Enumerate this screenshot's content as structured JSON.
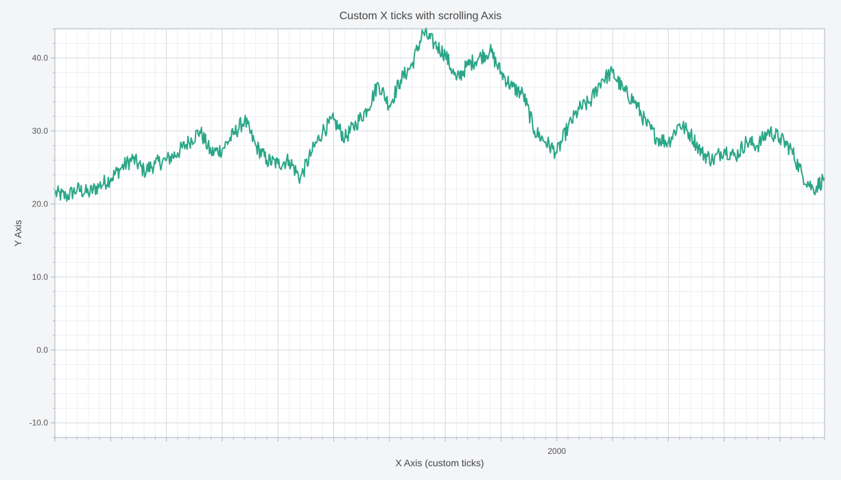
{
  "chart_data": {
    "type": "line",
    "title": "Custom X ticks with scrolling Axis",
    "xlabel": "X Axis (custom ticks)",
    "ylabel": "Y Axis",
    "xlim": [
      1550,
      2240
    ],
    "ylim": [
      -12,
      44
    ],
    "x_tick_labels": [
      {
        "x": 2000,
        "label": "2000"
      }
    ],
    "y_tick_labels": [
      {
        "y": 40,
        "label": "40.0"
      },
      {
        "y": 30,
        "label": "30.0"
      },
      {
        "y": 20,
        "label": "20.0"
      },
      {
        "y": 10,
        "label": "10.0"
      },
      {
        "y": 0,
        "label": "0.0"
      },
      {
        "y": -10,
        "label": "-10.0"
      }
    ],
    "grid": true,
    "series": [
      {
        "color": "#2aa687",
        "x": [
          1550,
          1560,
          1570,
          1580,
          1590,
          1600,
          1610,
          1620,
          1630,
          1640,
          1650,
          1660,
          1670,
          1680,
          1690,
          1700,
          1710,
          1720,
          1730,
          1740,
          1750,
          1760,
          1770,
          1780,
          1790,
          1800,
          1810,
          1820,
          1830,
          1840,
          1850,
          1860,
          1870,
          1880,
          1890,
          1900,
          1910,
          1920,
          1930,
          1940,
          1950,
          1960,
          1970,
          1980,
          1990,
          2000,
          2010,
          2020,
          2030,
          2040,
          2050,
          2060,
          2070,
          2080,
          2090,
          2100,
          2110,
          2120,
          2130,
          2140,
          2150,
          2160,
          2170,
          2180,
          2190,
          2200,
          2210,
          2220,
          2230,
          2240
        ],
        "y": [
          21.5,
          21.0,
          22.0,
          21.5,
          22.5,
          23.5,
          25.0,
          26.2,
          24.5,
          25.5,
          26.0,
          27.0,
          28.5,
          30.0,
          27.0,
          27.5,
          29.5,
          31.5,
          28.0,
          26.0,
          25.5,
          26.0,
          23.5,
          27.0,
          30.0,
          31.5,
          29.0,
          31.0,
          33.0,
          36.5,
          33.5,
          37.0,
          39.0,
          43.5,
          42.0,
          40.5,
          37.0,
          39.0,
          40.0,
          41.0,
          38.0,
          36.0,
          35.0,
          30.0,
          28.5,
          27.0,
          30.5,
          33.0,
          34.0,
          37.0,
          38.0,
          35.5,
          34.0,
          31.0,
          29.0,
          28.5,
          31.0,
          29.5,
          27.0,
          26.0,
          27.5,
          26.5,
          28.5,
          28.0,
          30.0,
          29.0,
          27.5,
          24.0,
          22.0,
          23.5
        ]
      }
    ]
  }
}
